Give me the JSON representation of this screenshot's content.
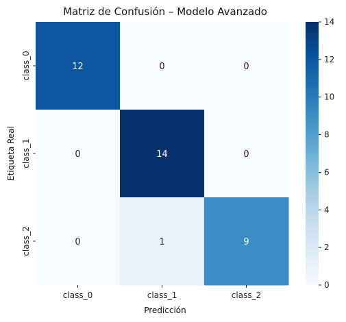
{
  "chart_data": {
    "type": "heatmap",
    "title": "Matriz de Confusión – Modelo Avanzado",
    "xlabel": "Predicción",
    "ylabel": "Etiqueta Real",
    "x_categories": [
      "class_0",
      "class_1",
      "class_2"
    ],
    "y_categories": [
      "class_0",
      "class_1",
      "class_2"
    ],
    "values": [
      [
        12,
        0,
        0
      ],
      [
        0,
        14,
        0
      ],
      [
        0,
        1,
        9
      ]
    ],
    "colorbar": {
      "min": 0,
      "max": 14,
      "ticks": [
        "0",
        "2",
        "4",
        "6",
        "8",
        "10",
        "12",
        "14"
      ]
    },
    "colormap": "Blues",
    "colors": {
      "low": "#f7fbff",
      "high": "#08306b",
      "text_light": "#ffffff",
      "text_dark": "#262626"
    }
  }
}
